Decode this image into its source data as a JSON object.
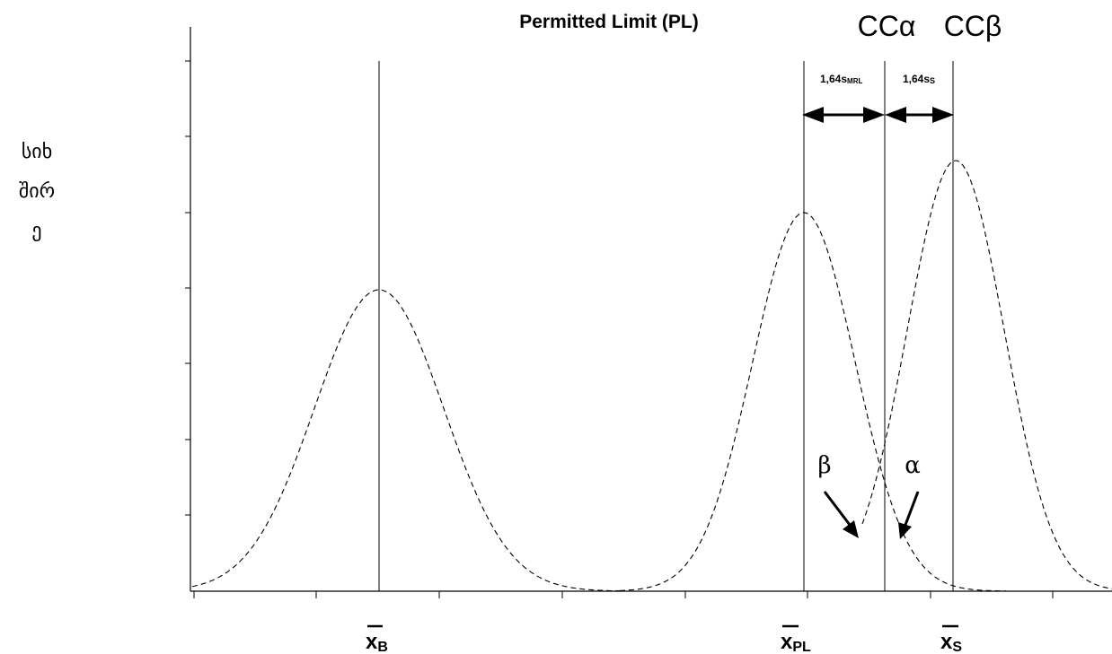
{
  "title": "Permitted Limit (PL)",
  "header": {
    "cc_alpha": "CCα",
    "cc_beta": "CCβ"
  },
  "intervals": {
    "mrl_label": "1,64s",
    "mrl_sub": "MRL",
    "s_label": "1,64s",
    "s_sub": "S"
  },
  "y_axis_label": {
    "line1": "სიხ",
    "line2": "შირ",
    "line3": "ე"
  },
  "error_labels": {
    "beta": "β",
    "alpha": "α"
  },
  "x_labels": {
    "blank": {
      "main": "x",
      "sub": "B"
    },
    "permitted_limit": {
      "main": "x",
      "sub": "PL"
    },
    "sample": {
      "main": "x",
      "sub": "S"
    }
  }
}
